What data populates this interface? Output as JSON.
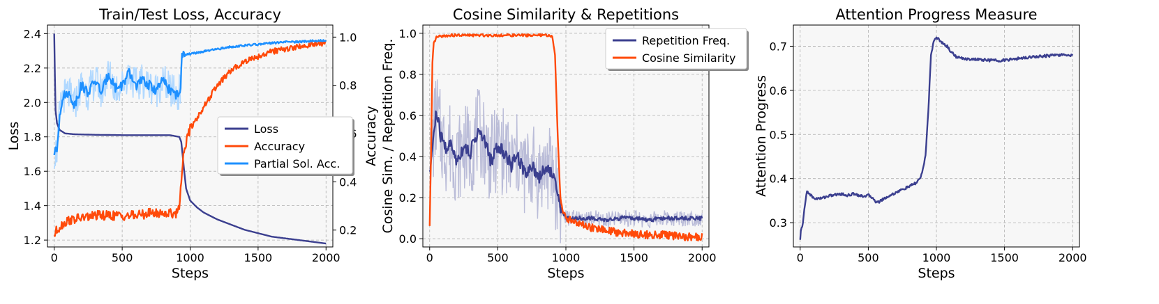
{
  "chart_data": [
    {
      "type": "line",
      "title": "Train/Test Loss, Accuracy",
      "xlabel": "Steps",
      "ylabel": "Loss",
      "ylabel_right": "Accuracy",
      "xlim": [
        -50,
        2050
      ],
      "ylim": [
        1.16,
        2.45
      ],
      "ylim_right": [
        0.13,
        1.05
      ],
      "xticks": [
        "0",
        "500",
        "1000",
        "1500",
        "2000"
      ],
      "xtick_values": [
        0,
        500,
        1000,
        1500,
        2000
      ],
      "yticks": [
        "1.2",
        "1.4",
        "1.6",
        "1.8",
        "2.0",
        "2.2",
        "2.4"
      ],
      "ytick_values": [
        1.2,
        1.4,
        1.6,
        1.8,
        2.0,
        2.2,
        2.4
      ],
      "yticks_right": [
        "0.2",
        "0.4",
        "0.6",
        "0.8",
        "1.0"
      ],
      "ytick_values_right": [
        0.2,
        0.4,
        0.6,
        0.8,
        1.0
      ],
      "legend": [
        "Loss",
        "Accuracy",
        "Partial Sol. Acc."
      ],
      "series": [
        {
          "name": "Loss",
          "axis": "left",
          "color": "#3b3f8f",
          "x": [
            0,
            5,
            10,
            20,
            40,
            80,
            150,
            300,
            500,
            700,
            850,
            920,
            935,
            950,
            970,
            1000,
            1050,
            1100,
            1200,
            1300,
            1400,
            1500,
            1600,
            1700,
            1800,
            1900,
            2000
          ],
          "values": [
            2.4,
            2.15,
            1.95,
            1.88,
            1.84,
            1.82,
            1.815,
            1.812,
            1.81,
            1.81,
            1.81,
            1.8,
            1.77,
            1.65,
            1.5,
            1.43,
            1.39,
            1.36,
            1.32,
            1.29,
            1.26,
            1.24,
            1.22,
            1.21,
            1.2,
            1.19,
            1.18
          ]
        },
        {
          "name": "Accuracy",
          "axis": "right",
          "color": "#ff4a0a",
          "x": [
            0,
            20,
            50,
            100,
            200,
            300,
            400,
            500,
            600,
            700,
            800,
            900,
            920,
            940,
            960,
            980,
            1000,
            1100,
            1200,
            1300,
            1400,
            1500,
            1600,
            1700,
            1800,
            1900,
            2000
          ],
          "values": [
            0.18,
            0.2,
            0.22,
            0.24,
            0.25,
            0.26,
            0.26,
            0.26,
            0.26,
            0.27,
            0.27,
            0.27,
            0.3,
            0.45,
            0.55,
            0.58,
            0.62,
            0.71,
            0.8,
            0.86,
            0.9,
            0.92,
            0.94,
            0.95,
            0.96,
            0.97,
            0.975
          ]
        },
        {
          "name": "Partial Sol. Acc.",
          "axis": "right",
          "color": "#1e90ff",
          "x": [
            0,
            20,
            40,
            60,
            100,
            150,
            200,
            250,
            300,
            350,
            400,
            450,
            500,
            550,
            600,
            650,
            700,
            750,
            800,
            850,
            900,
            930,
            940,
            960,
            1000,
            1100,
            1200,
            1300,
            1400,
            1500,
            1600,
            1700,
            1800,
            1900,
            2000
          ],
          "values": [
            0.52,
            0.53,
            0.68,
            0.75,
            0.77,
            0.72,
            0.8,
            0.77,
            0.82,
            0.77,
            0.85,
            0.79,
            0.8,
            0.85,
            0.8,
            0.82,
            0.8,
            0.78,
            0.82,
            0.78,
            0.76,
            0.78,
            0.92,
            0.93,
            0.93,
            0.94,
            0.95,
            0.96,
            0.965,
            0.97,
            0.975,
            0.98,
            0.98,
            0.985,
            0.985
          ]
        }
      ]
    },
    {
      "type": "line",
      "title": "Cosine Similarity & Repetitions",
      "xlabel": "Steps",
      "ylabel": "Cosine Sim. / Repetition Freq.",
      "xlim": [
        -50,
        2050
      ],
      "ylim": [
        -0.04,
        1.04
      ],
      "xticks": [
        "0",
        "500",
        "1000",
        "1500",
        "2000"
      ],
      "xtick_values": [
        0,
        500,
        1000,
        1500,
        2000
      ],
      "yticks": [
        "0.0",
        "0.2",
        "0.4",
        "0.6",
        "0.8",
        "1.0"
      ],
      "ytick_values": [
        0.0,
        0.2,
        0.4,
        0.6,
        0.8,
        1.0
      ],
      "legend": [
        "Repetition Freq.",
        "Cosine Similarity"
      ],
      "series": [
        {
          "name": "Repetition Freq.",
          "color": "#3b3f8f",
          "x": [
            0,
            20,
            50,
            80,
            120,
            150,
            200,
            250,
            300,
            350,
            400,
            450,
            500,
            550,
            600,
            650,
            700,
            750,
            800,
            850,
            900,
            940,
            970,
            1000,
            1100,
            1200,
            1300,
            1400,
            1500,
            1600,
            1700,
            1800,
            1900,
            2000
          ],
          "values": [
            0.3,
            0.45,
            0.62,
            0.5,
            0.44,
            0.46,
            0.38,
            0.45,
            0.42,
            0.52,
            0.48,
            0.38,
            0.45,
            0.42,
            0.36,
            0.4,
            0.32,
            0.36,
            0.3,
            0.35,
            0.32,
            0.22,
            0.13,
            0.1,
            0.1,
            0.1,
            0.09,
            0.1,
            0.1,
            0.09,
            0.1,
            0.1,
            0.1,
            0.1
          ]
        },
        {
          "name": "Cosine Similarity",
          "color": "#ff4a0a",
          "x": [
            0,
            10,
            20,
            30,
            50,
            80,
            150,
            300,
            500,
            700,
            850,
            900,
            920,
            940,
            960,
            980,
            1000,
            1050,
            1100,
            1200,
            1300,
            1400,
            1500,
            1600,
            1700,
            1800,
            1900,
            2000
          ],
          "values": [
            0.06,
            0.4,
            0.85,
            0.95,
            0.98,
            0.985,
            0.99,
            0.99,
            0.99,
            0.99,
            0.99,
            0.985,
            0.9,
            0.5,
            0.2,
            0.12,
            0.1,
            0.09,
            0.07,
            0.05,
            0.04,
            0.03,
            0.025,
            0.02,
            0.02,
            0.015,
            0.01,
            0.01
          ]
        }
      ]
    },
    {
      "type": "line",
      "title": "Attention Progress Measure",
      "xlabel": "Steps",
      "ylabel": "Attention Progress",
      "xlim": [
        -50,
        2050
      ],
      "ylim": [
        0.245,
        0.748
      ],
      "xticks": [
        "0",
        "500",
        "1000",
        "1500",
        "2000"
      ],
      "xtick_values": [
        0,
        500,
        1000,
        1500,
        2000
      ],
      "yticks": [
        "0.3",
        "0.4",
        "0.5",
        "0.6",
        "0.7"
      ],
      "ytick_values": [
        0.3,
        0.4,
        0.5,
        0.6,
        0.7
      ],
      "legend": [],
      "series": [
        {
          "name": "Attention Progress",
          "color": "#3b3f8f",
          "x": [
            0,
            5,
            20,
            35,
            50,
            70,
            100,
            150,
            200,
            250,
            300,
            350,
            400,
            450,
            500,
            540,
            560,
            580,
            600,
            650,
            700,
            750,
            800,
            850,
            880,
            900,
            920,
            940,
            960,
            980,
            1000,
            1020,
            1050,
            1080,
            1100,
            1150,
            1200,
            1300,
            1400,
            1500,
            1600,
            1700,
            1800,
            1900,
            2000
          ],
          "values": [
            0.26,
            0.28,
            0.3,
            0.34,
            0.372,
            0.365,
            0.355,
            0.355,
            0.36,
            0.363,
            0.365,
            0.362,
            0.366,
            0.36,
            0.362,
            0.355,
            0.345,
            0.348,
            0.352,
            0.36,
            0.368,
            0.375,
            0.382,
            0.39,
            0.4,
            0.42,
            0.45,
            0.55,
            0.68,
            0.71,
            0.72,
            0.715,
            0.705,
            0.7,
            0.69,
            0.675,
            0.672,
            0.67,
            0.668,
            0.668,
            0.672,
            0.676,
            0.678,
            0.68,
            0.68
          ]
        }
      ]
    }
  ]
}
